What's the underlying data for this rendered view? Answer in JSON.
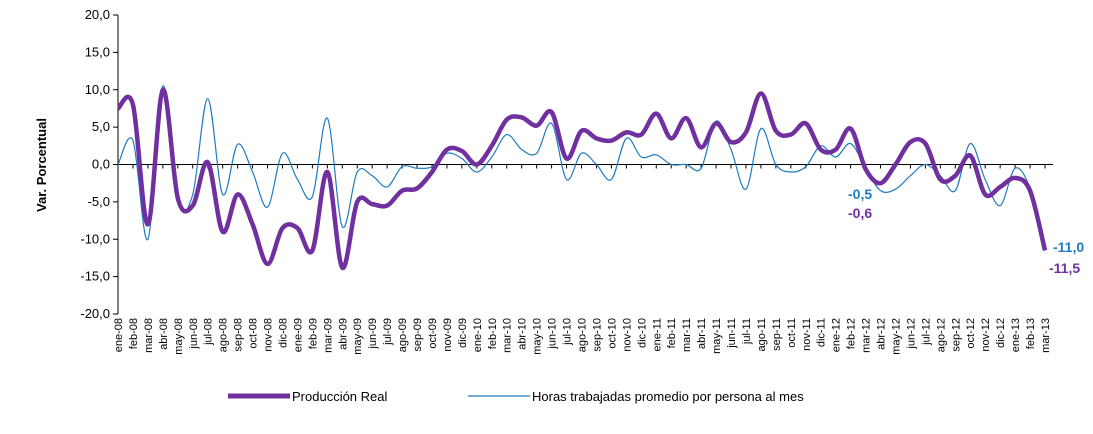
{
  "chart_data": {
    "type": "line",
    "y_label": "Var. Porcentual",
    "categories": [
      "ene-08",
      "feb-08",
      "mar-08",
      "abr-08",
      "may-08",
      "jun-08",
      "jul-08",
      "ago-08",
      "sep-08",
      "oct-08",
      "nov-08",
      "dic-08",
      "ene-09",
      "feb-09",
      "mar-09",
      "abr-09",
      "may-09",
      "jun-09",
      "jul-09",
      "ago-09",
      "sep-09",
      "oct-09",
      "nov-09",
      "dic-09",
      "ene-10",
      "feb-10",
      "mar-10",
      "abr-10",
      "may-10",
      "jun-10",
      "jul-10",
      "ago-10",
      "sep-10",
      "oct-10",
      "nov-10",
      "dic-10",
      "ene-11",
      "feb-11",
      "mar-11",
      "abr-11",
      "may-11",
      "jun-11",
      "jul-11",
      "ago-11",
      "sep-11",
      "oct-11",
      "nov-11",
      "dic-11",
      "ene-12",
      "feb-12",
      "mar-12",
      "abr-12",
      "may-12",
      "jun-12",
      "jul-12",
      "ago-12",
      "sep-12",
      "oct-12",
      "nov-12",
      "dic-12",
      "ene-13",
      "feb-13",
      "mar-13"
    ],
    "series": [
      {
        "name": "Producción Real",
        "color": "#7030a0",
        "values": [
          7.5,
          8,
          -8,
          10,
          -4.5,
          -5.5,
          0.3,
          -9,
          -4,
          -8,
          -13.3,
          -8.5,
          -8.5,
          -11.5,
          -1,
          -13.8,
          -5,
          -5.3,
          -5.5,
          -3.5,
          -3.2,
          -1,
          2,
          1.8,
          0,
          2.5,
          6,
          6.3,
          5.2,
          7,
          0.8,
          4.5,
          3.5,
          3.2,
          4.3,
          4,
          6.8,
          3.5,
          6.2,
          2.3,
          5.5,
          3,
          4.3,
          9.5,
          4.5,
          4,
          5.5,
          2,
          2,
          4.8,
          -0.6,
          -2.5,
          0,
          3,
          2.8,
          -2,
          -1.5,
          1.2,
          -4,
          -3,
          -1.8,
          -3.5,
          -11.5
        ]
      },
      {
        "name": "Horas trabajadas promedio por persona al mes",
        "color": "#1f7bc0",
        "values": [
          0,
          3.2,
          -10,
          10.5,
          -5,
          -4,
          8.8,
          -4,
          2.7,
          -1,
          -5.7,
          1.5,
          -2,
          -4.3,
          6.2,
          -8.3,
          -1,
          -1.5,
          -3,
          -0.3,
          -0.5,
          -0.3,
          1.5,
          0.8,
          -1,
          1,
          4,
          2,
          1.5,
          5.5,
          -2,
          1.5,
          0,
          -2,
          3.5,
          1,
          1.3,
          0,
          0,
          -0.5,
          5.8,
          2,
          -3.3,
          4.8,
          0,
          -1,
          -0.3,
          2.5,
          1,
          2.8,
          -0.5,
          -3.5,
          -3.3,
          -1.5,
          0,
          -1.5,
          -3.5,
          2.8,
          -2,
          -5.5,
          -0.5,
          -3.2,
          -11
        ]
      }
    ],
    "annotations": [
      {
        "text": "-0,5",
        "color": "#1f7bc0"
      },
      {
        "text": "-0,6",
        "color": "#7030a0"
      },
      {
        "text": "-11,0",
        "color": "#1f7bc0"
      },
      {
        "text": "-11,5",
        "color": "#7030a0"
      }
    ],
    "ylim": [
      -20,
      20
    ],
    "yticks": [
      {
        "value": -20,
        "label": "-20,0"
      },
      {
        "value": -15,
        "label": "-15,0"
      },
      {
        "value": -10,
        "label": "-10,0"
      },
      {
        "value": -5,
        "label": "-5,0"
      },
      {
        "value": 0,
        "label": "0,0"
      },
      {
        "value": 5,
        "label": "5,0"
      },
      {
        "value": 10,
        "label": "10,0"
      },
      {
        "value": 15,
        "label": "15,0"
      },
      {
        "value": 20,
        "label": "20,0"
      }
    ]
  }
}
